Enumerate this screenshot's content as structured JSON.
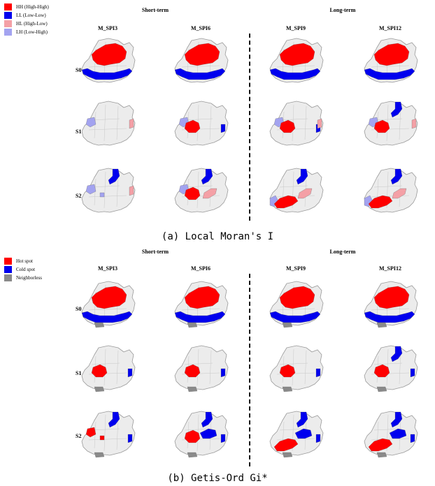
{
  "panel_a": {
    "legend": [
      {
        "label": "HH (High-High)",
        "color": "#ff0000",
        "icon": "square-swatch"
      },
      {
        "label": "LL (Low-Low)",
        "color": "#0000ee",
        "icon": "square-swatch"
      },
      {
        "label": "HL (High-Low)",
        "color": "#f4a0a6",
        "icon": "square-swatch"
      },
      {
        "label": "LH (Low-High)",
        "color": "#a3a3f0",
        "icon": "square-swatch"
      }
    ],
    "group_titles": [
      "Short-term",
      "Long-term"
    ],
    "columns": [
      "M_SPI3",
      "M_SPI6",
      "M_SPI9",
      "M_SPI12"
    ],
    "rows": [
      "S0",
      "S1",
      "S2"
    ],
    "caption": "(a) Local Moran's I"
  },
  "panel_b": {
    "legend": [
      {
        "label": "Hot spot",
        "color": "#ff0000",
        "icon": "square-swatch"
      },
      {
        "label": "Cold spot",
        "color": "#0000ee",
        "icon": "square-swatch"
      },
      {
        "label": "Neighborless",
        "color": "#8a8a8a",
        "icon": "square-swatch"
      }
    ],
    "group_titles": [
      "Short-term",
      "Long-term"
    ],
    "columns": [
      "M_SPI3",
      "M_SPI6",
      "M_SPI9",
      "M_SPI12"
    ],
    "rows": [
      "S0",
      "S1",
      "S2"
    ],
    "caption": "(b) Getis-Ord Gi*"
  },
  "colors": {
    "base": "#ececec",
    "outline": "#9a9a9a",
    "hot": "#ff0000",
    "cold": "#0000ee",
    "high_low": "#f4a0a6",
    "low_high": "#a3a3f0",
    "neighborless": "#8a8a8a"
  }
}
